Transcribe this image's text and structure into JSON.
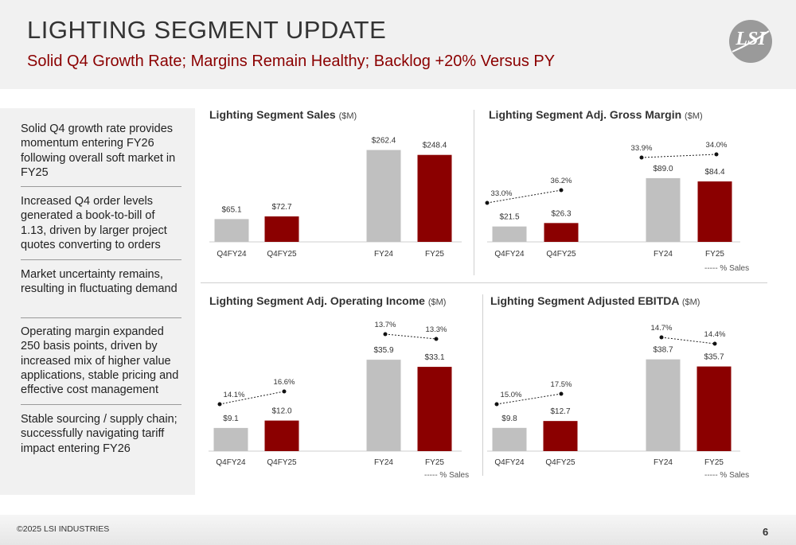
{
  "header": {
    "title": "LIGHTING SEGMENT UPDATE",
    "subtitle": "Solid Q4 Growth Rate; Margins Remain Healthy; Backlog +20% Versus PY",
    "logo_text": "LSI"
  },
  "sidebar": {
    "items": [
      "Solid Q4 growth rate provides momentum entering FY26 following overall soft market in FY25",
      "Increased Q4 order levels generated a book-to-bill of 1.13, driven by larger project quotes converting to orders",
      "Market uncertainty remains, resulting in fluctuating demand",
      "Operating margin expanded 250 basis points, driven by increased mix of higher value applications, stable pricing and effective cost management",
      "Stable sourcing / supply chain; successfully navigating tariff impact entering FY26"
    ]
  },
  "colors": {
    "prior": "#c0c0c0",
    "current": "#8b0000",
    "accent": "#8b0000",
    "text": "#333333"
  },
  "chart_data": [
    {
      "type": "bar",
      "title": "Lighting Segment Sales",
      "unit": "($M)",
      "categories": [
        "Q4FY24",
        "Q4FY25",
        "FY24",
        "FY25"
      ],
      "values": [
        65.1,
        72.7,
        262.4,
        248.4
      ],
      "labels": [
        "$65.1",
        "$72.7",
        "$262.4",
        "$248.4"
      ],
      "legend": ""
    },
    {
      "type": "bar",
      "title": "Lighting Segment Adj. Gross Margin",
      "unit": "($M)",
      "categories": [
        "Q4FY24",
        "Q4FY25",
        "FY24",
        "FY25"
      ],
      "values": [
        21.5,
        26.3,
        89.0,
        84.4
      ],
      "labels": [
        "$21.5",
        "$26.3",
        "$89.0",
        "$84.4"
      ],
      "pct_values": [
        33.0,
        36.2,
        33.9,
        34.0
      ],
      "pct_labels": [
        "33.0%",
        "36.2%",
        "33.9%",
        "34.0%"
      ],
      "legend": "----- % Sales"
    },
    {
      "type": "bar",
      "title": "Lighting Segment Adj. Operating Income",
      "unit": "($M)",
      "categories": [
        "Q4FY24",
        "Q4FY25",
        "FY24",
        "FY25"
      ],
      "values": [
        9.1,
        12.0,
        35.9,
        33.1
      ],
      "labels": [
        "$9.1",
        "$12.0",
        "$35.9",
        "$33.1"
      ],
      "pct_values": [
        14.1,
        16.6,
        13.7,
        13.3
      ],
      "pct_labels": [
        "14.1%",
        "16.6%",
        "13.7%",
        "13.3%"
      ],
      "legend": "----- % Sales"
    },
    {
      "type": "bar",
      "title": "Lighting Segment Adjusted EBITDA",
      "unit": "($M)",
      "categories": [
        "Q4FY24",
        "Q4FY25",
        "FY24",
        "FY25"
      ],
      "values": [
        9.8,
        12.7,
        38.7,
        35.7
      ],
      "labels": [
        "$9.8",
        "$12.7",
        "$38.7",
        "$35.7"
      ],
      "pct_values": [
        15.0,
        17.5,
        14.7,
        14.4
      ],
      "pct_labels": [
        "15.0%",
        "17.5%",
        "14.7%",
        "14.4%"
      ],
      "legend": "----- % Sales"
    }
  ],
  "footer": {
    "copyright": "©2025 LSI INDUSTRIES",
    "page_number": "6"
  }
}
